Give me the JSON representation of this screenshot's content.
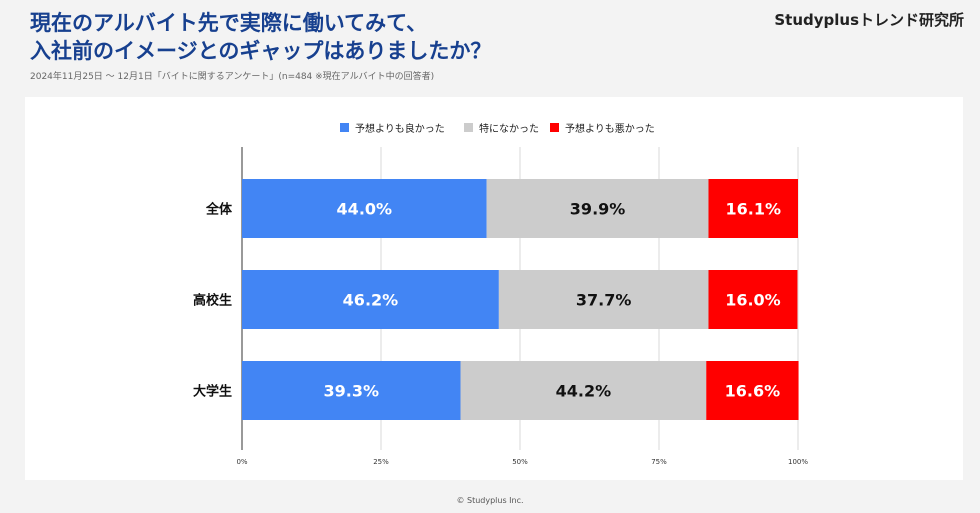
{
  "header": {
    "title_line1": "現在のアルバイト先で実際に働いてみて、",
    "title_line2": "入社前のイメージとのギャップはありましたか？",
    "brand": "Studyplusトレンド研究所",
    "subtitle": "2024年11月25日 〜 12月1日「バイトに関するアンケート」(n=484 ※現在アルバイト中の回答者)"
  },
  "footer": {
    "copyright": "© Studyplus Inc."
  },
  "chart_data": {
    "type": "bar",
    "orientation": "horizontal",
    "stacked": true,
    "percent": true,
    "title": "",
    "xlabel": "",
    "ylabel": "",
    "xlim": [
      0,
      100
    ],
    "x_ticks": [
      "0%",
      "25%",
      "50%",
      "75%",
      "100%"
    ],
    "grid": true,
    "legend": "top-center",
    "categories": [
      "全体",
      "高校生",
      "大学生"
    ],
    "series": [
      {
        "name": "予想よりも良かった",
        "color": "#4285f4",
        "label_color": "#ffffff",
        "values": [
          44.0,
          46.2,
          39.3
        ],
        "labels": [
          "44.0%",
          "46.2%",
          "39.3%"
        ]
      },
      {
        "name": "特になかった",
        "color": "#cccccc",
        "label_color": "#111111",
        "values": [
          39.9,
          37.7,
          44.2
        ],
        "labels": [
          "39.9%",
          "37.7%",
          "44.2%"
        ]
      },
      {
        "name": "予想よりも悪かった",
        "color": "#ff0000",
        "label_color": "#ffffff",
        "values": [
          16.1,
          16.0,
          16.6
        ],
        "labels": [
          "16.1%",
          "16.0%",
          "16.6%"
        ]
      }
    ]
  }
}
